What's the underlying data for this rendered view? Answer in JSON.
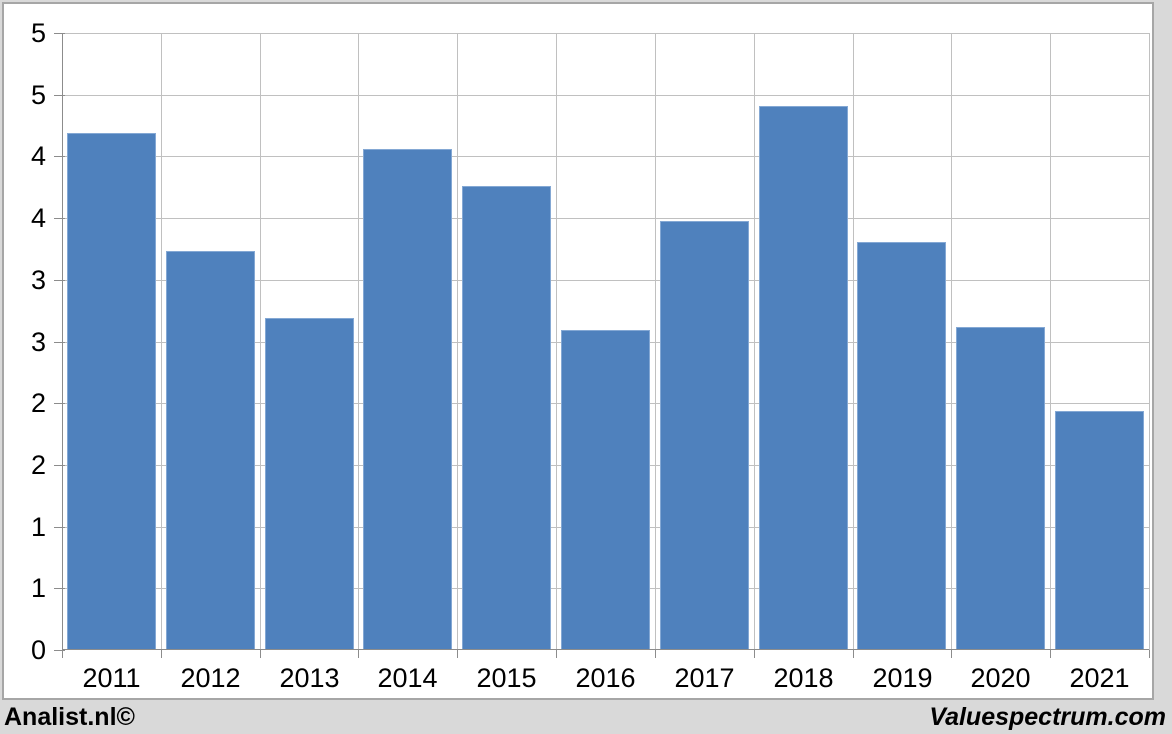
{
  "chart_data": {
    "type": "bar",
    "title": "",
    "xlabel": "",
    "ylabel": "",
    "categories": [
      "2011",
      "2012",
      "2013",
      "2014",
      "2015",
      "2016",
      "2017",
      "2018",
      "2019",
      "2020",
      "2021"
    ],
    "values": [
      4.19,
      3.23,
      2.69,
      4.06,
      3.76,
      2.59,
      3.48,
      4.41,
      3.31,
      2.62,
      1.94
    ],
    "ylim": [
      0,
      5
    ],
    "y_tick_step": 0.5,
    "y_ticks": [
      {
        "value": 5.0,
        "label": "5"
      },
      {
        "value": 4.5,
        "label": "5"
      },
      {
        "value": 4.0,
        "label": "4"
      },
      {
        "value": 3.5,
        "label": "4"
      },
      {
        "value": 3.0,
        "label": "3"
      },
      {
        "value": 2.5,
        "label": "3"
      },
      {
        "value": 2.0,
        "label": "2"
      },
      {
        "value": 1.5,
        "label": "2"
      },
      {
        "value": 1.0,
        "label": "1"
      },
      {
        "value": 0.5,
        "label": "1"
      },
      {
        "value": 0.0,
        "label": "0"
      }
    ],
    "grid": "both",
    "legend": "none",
    "bar_width_ratio": 0.9,
    "colors": {
      "bar_fill": "#4f81bd",
      "bar_border": "#84a8d4",
      "gridline": "#c0c0c0",
      "axis": "#8c8c8c",
      "plot_background": "#ffffff",
      "page_background": "#d9d9d9",
      "frame_border": "#a6a6a6",
      "text": "#000000"
    }
  },
  "footer": {
    "left_credit": "Analist.nl©",
    "right_credit": "Valuespectrum.com"
  }
}
